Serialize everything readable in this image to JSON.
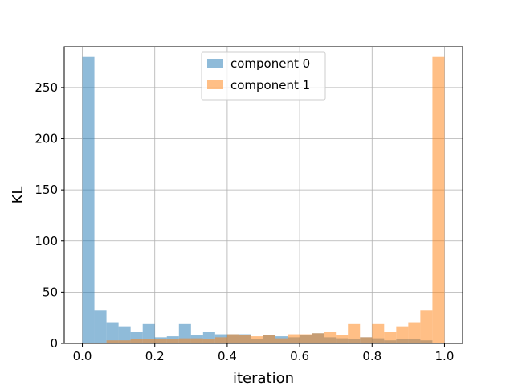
{
  "chart_data": {
    "type": "bar",
    "xlabel": "iteration",
    "ylabel": "KL",
    "xlim": [
      -0.05,
      1.05
    ],
    "ylim": [
      0,
      290
    ],
    "grid": true,
    "legend_position": "top-center",
    "bin_width": 0.0333,
    "xticks": [
      "0.0",
      "0.2",
      "0.4",
      "0.6",
      "0.8",
      "1.0"
    ],
    "yticks": [
      "0",
      "50",
      "100",
      "150",
      "200",
      "250"
    ],
    "xtick_values": [
      0,
      0.2,
      0.4,
      0.6,
      0.8,
      1.0
    ],
    "ytick_values": [
      0,
      50,
      100,
      150,
      200,
      250
    ],
    "bin_starts": [
      0.0,
      0.0333,
      0.0667,
      0.1,
      0.1333,
      0.1667,
      0.2,
      0.2333,
      0.2667,
      0.3,
      0.3333,
      0.3667,
      0.4,
      0.4333,
      0.4667,
      0.5,
      0.5333,
      0.5667,
      0.6,
      0.6333,
      0.6667,
      0.7,
      0.7333,
      0.7667,
      0.8,
      0.8333,
      0.8667,
      0.9,
      0.9333,
      0.9667
    ],
    "series": [
      {
        "name": "component 0",
        "color": "#1f77b4",
        "values": [
          280,
          32,
          20,
          16,
          11,
          19,
          6,
          7,
          19,
          8,
          11,
          9,
          9,
          9,
          4,
          8,
          7,
          6,
          8,
          10,
          6,
          5,
          4,
          6,
          5,
          3,
          4,
          4,
          3,
          0
        ]
      },
      {
        "name": "component 1",
        "color": "#ff7f0e",
        "values": [
          0,
          0,
          3,
          3,
          4,
          4,
          4,
          4,
          5,
          5,
          4,
          6,
          9,
          8,
          7,
          8,
          5,
          9,
          9,
          10,
          11,
          8,
          19,
          6,
          19,
          11,
          16,
          20,
          32,
          280
        ]
      }
    ]
  }
}
